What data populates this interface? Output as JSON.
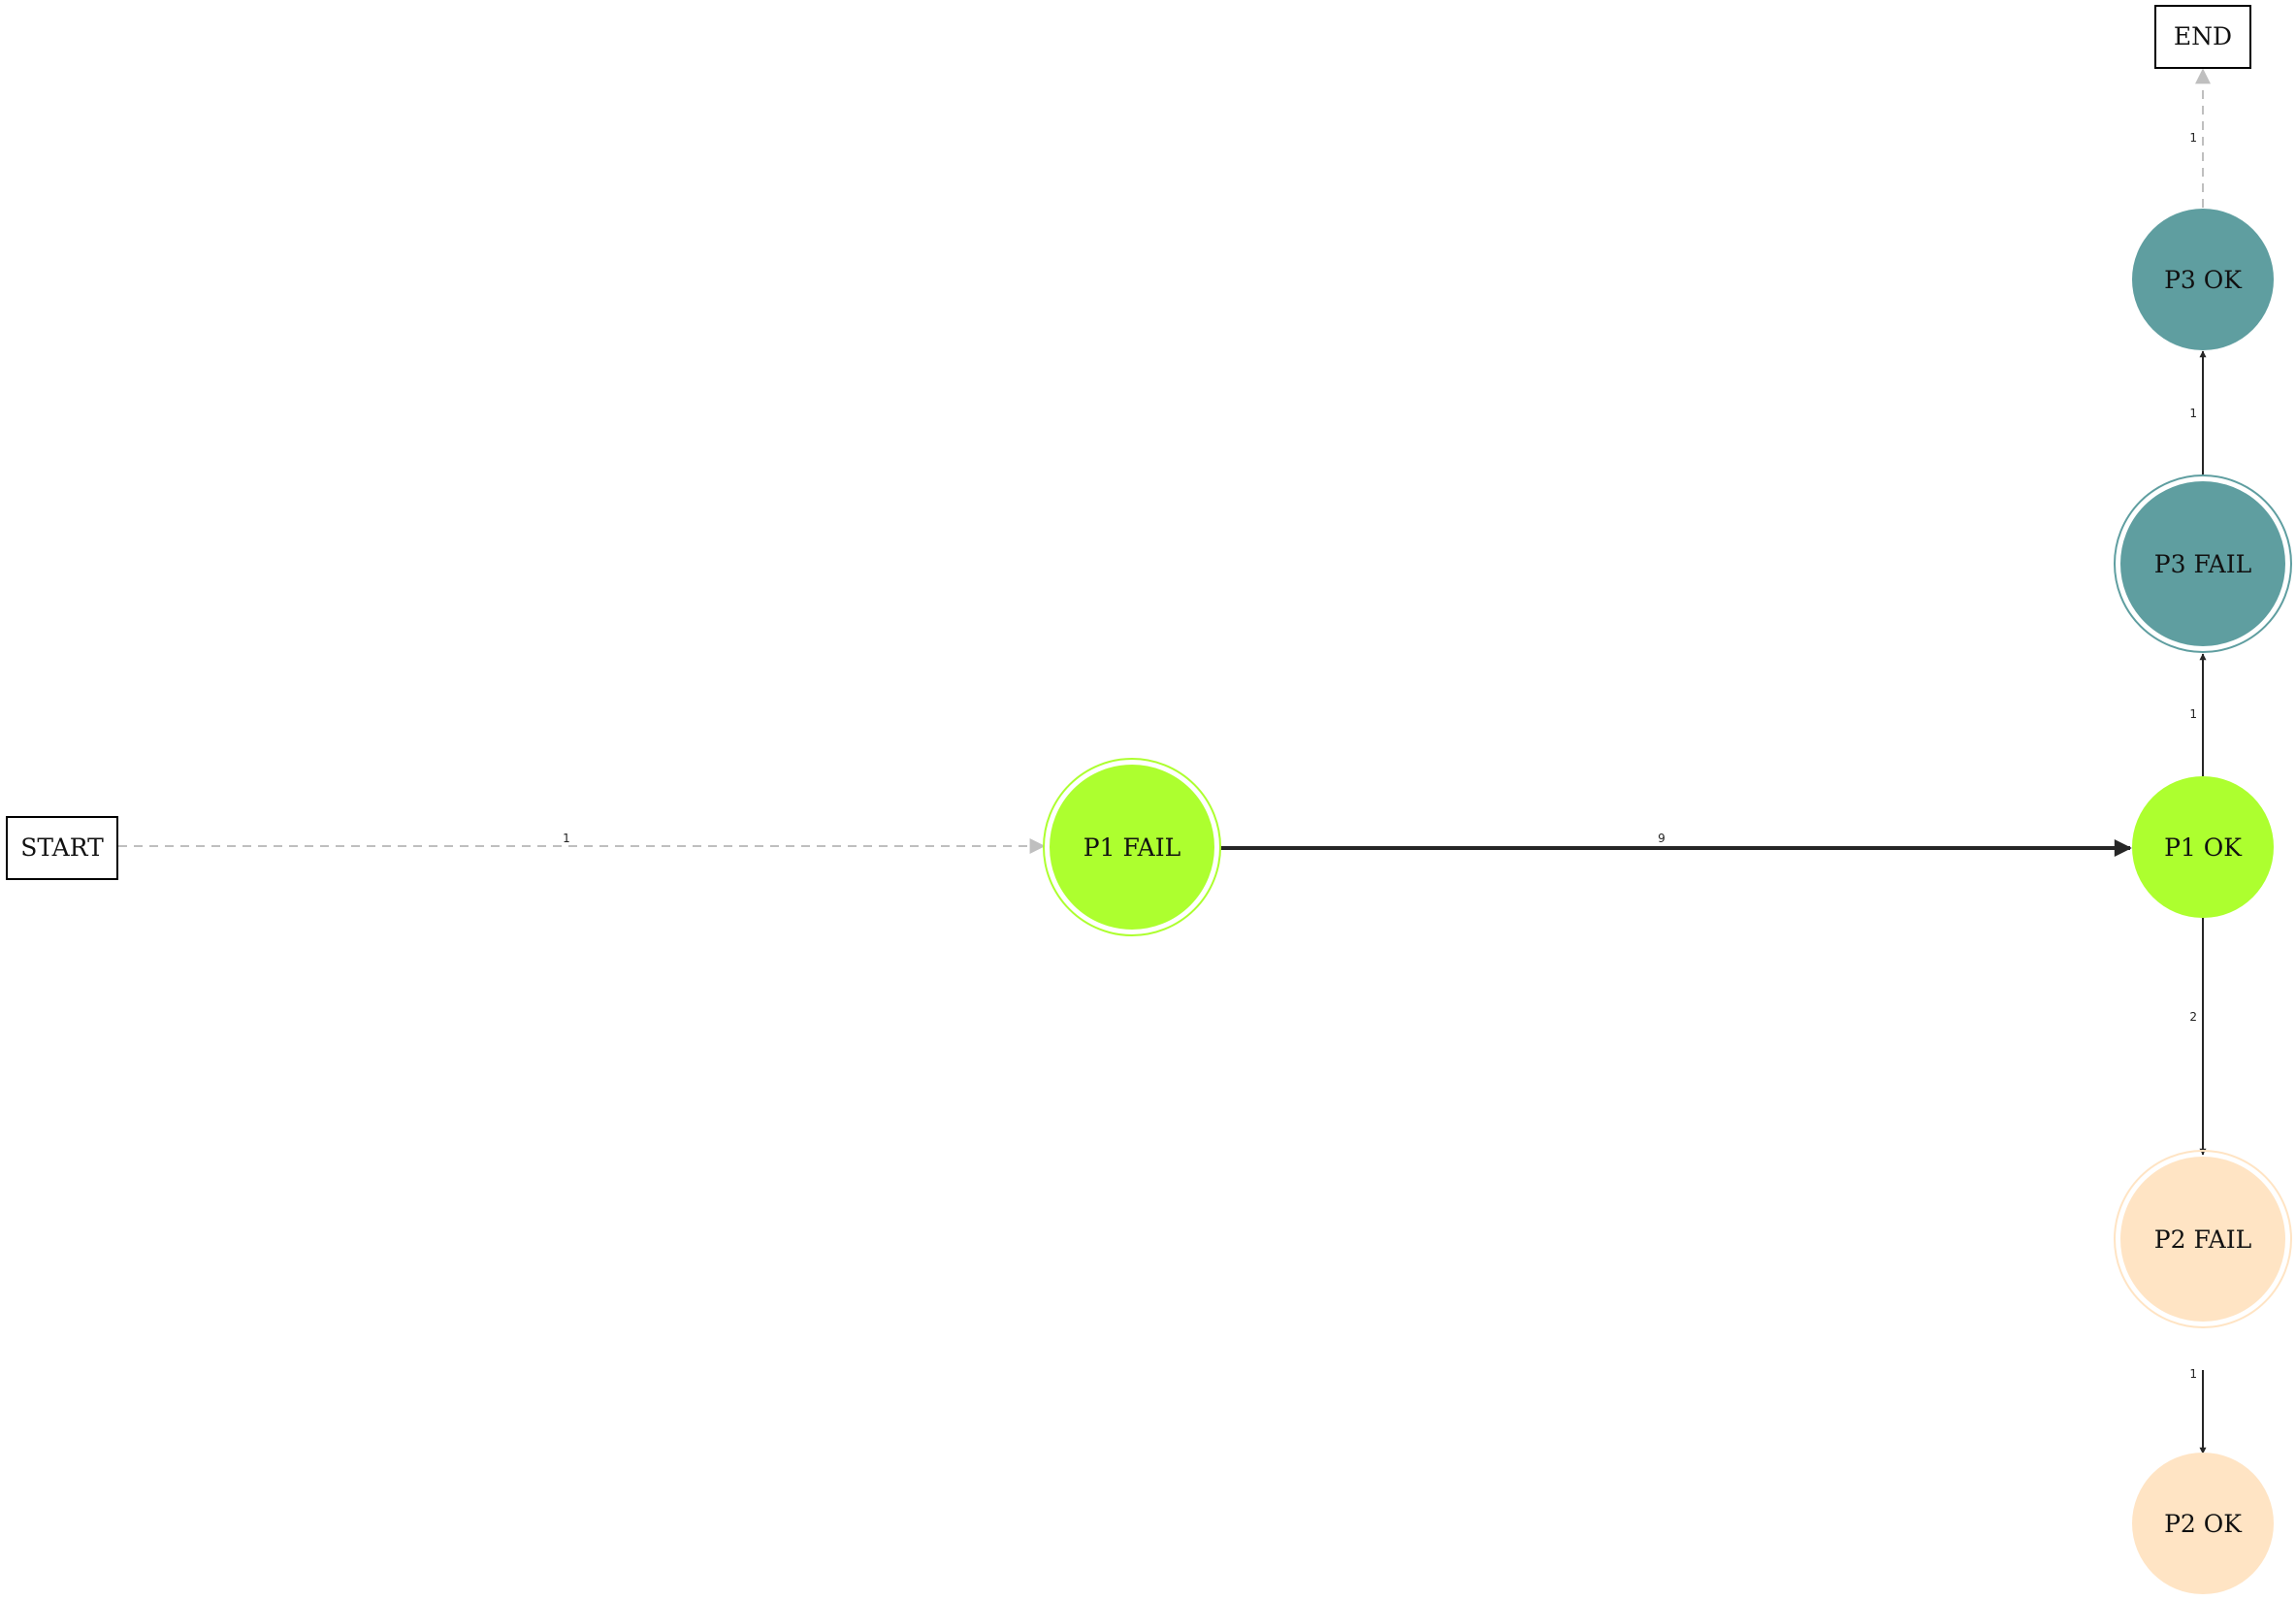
{
  "colors": {
    "p1": "#adff2f",
    "p2": "#ffe4c4",
    "p3": "#5f9ea0",
    "edge_solid": "#262626",
    "edge_dashed": "#bfbfbf",
    "box_stroke": "#000000"
  },
  "nodes": {
    "start": "START",
    "end": "END",
    "p1_fail": "P1 FAIL",
    "p1_ok": "P1 OK",
    "p2_fail": "P2 FAIL",
    "p2_ok": "P2 OK",
    "p3_fail": "P3 FAIL",
    "p3_ok": "P3 OK"
  },
  "edges": {
    "start_p1fail": "1",
    "p1fail_p1ok": "9",
    "p1ok_p3fail": "1",
    "p3fail_p3ok": "1",
    "p3ok_end": "1",
    "p1ok_p2fail": "2",
    "p2fail_p2ok": "1"
  }
}
